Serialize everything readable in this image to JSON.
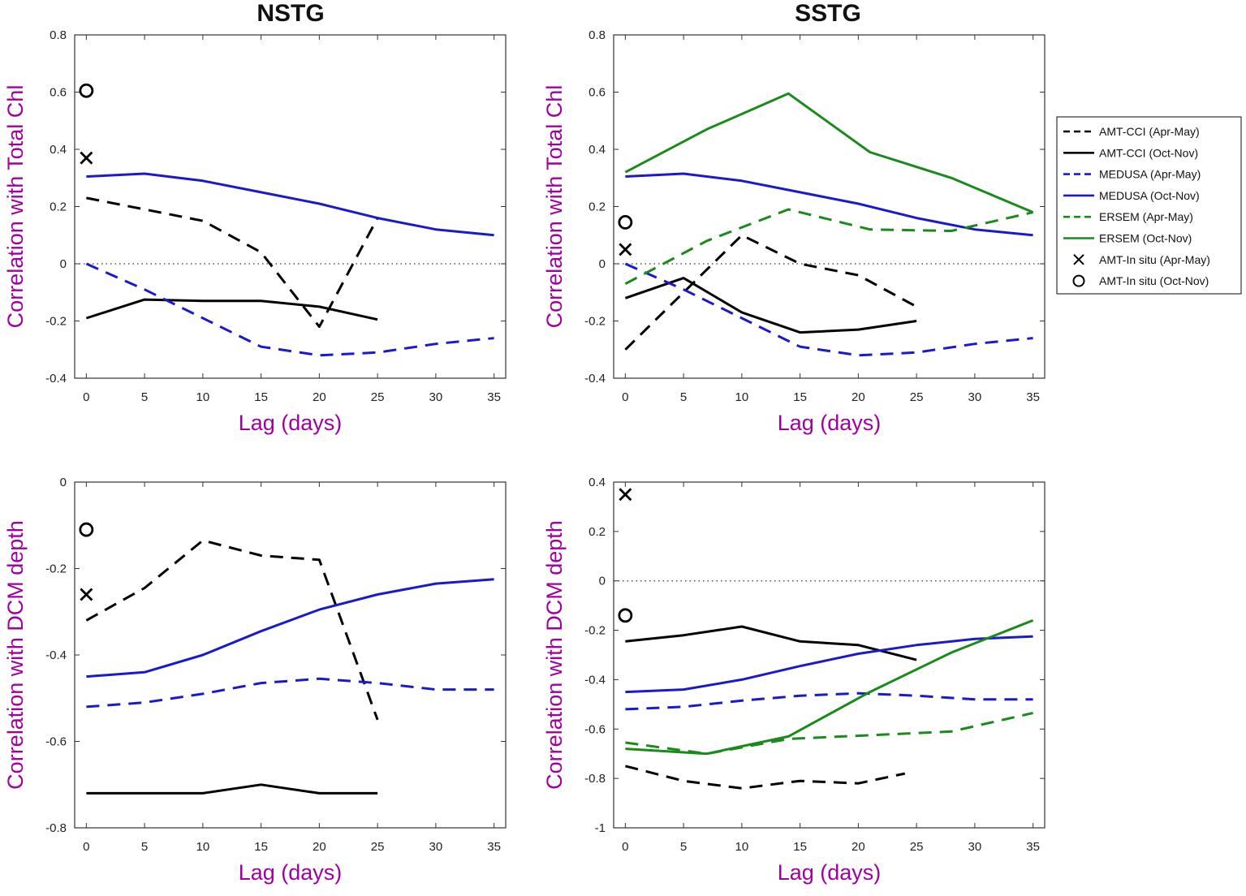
{
  "figure": {
    "column_titles": [
      "NSTG",
      "SSTG"
    ]
  },
  "legend": {
    "entries": [
      {
        "label": "AMT-CCI (Apr-May)",
        "color": "#000000",
        "style": "dashed"
      },
      {
        "label": "AMT-CCI (Oct-Nov)",
        "color": "#000000",
        "style": "solid"
      },
      {
        "label": "MEDUSA (Apr-May)",
        "color": "#1a1acc",
        "style": "dashed"
      },
      {
        "label": "MEDUSA (Oct-Nov)",
        "color": "#1a1acc",
        "style": "solid"
      },
      {
        "label": "ERSEM (Apr-May)",
        "color": "#1a8a1a",
        "style": "dashed"
      },
      {
        "label": "ERSEM (Oct-Nov)",
        "color": "#1a8a1a",
        "style": "solid"
      },
      {
        "label": "AMT-In situ (Apr-May)",
        "color": "#000000",
        "style": "x-marker"
      },
      {
        "label": "AMT-In situ (Oct-Nov)",
        "color": "#000000",
        "style": "o-marker"
      }
    ]
  },
  "chart_data": [
    {
      "type": "line",
      "title": "NSTG",
      "xlabel": "Lag (days)",
      "ylabel": "Correlation with Total Chl",
      "xlim": [
        -1,
        36
      ],
      "ylim": [
        -0.4,
        0.8
      ],
      "xticks": [
        0,
        5,
        10,
        15,
        20,
        25,
        30,
        35
      ],
      "yticks": [
        -0.4,
        -0.2,
        0,
        0.2,
        0.4,
        0.6,
        0.8
      ],
      "zero_line": true,
      "series": [
        {
          "name": "AMT-CCI (Apr-May)",
          "color": "#000000",
          "style": "dashed",
          "x": [
            0,
            5,
            10,
            15,
            20,
            25
          ],
          "y": [
            0.23,
            0.19,
            0.15,
            0.04,
            -0.22,
            0.16
          ]
        },
        {
          "name": "AMT-CCI (Oct-Nov)",
          "color": "#000000",
          "style": "solid",
          "x": [
            0,
            5,
            10,
            15,
            20,
            25
          ],
          "y": [
            -0.19,
            -0.125,
            -0.13,
            -0.13,
            -0.15,
            -0.195
          ]
        },
        {
          "name": "MEDUSA (Apr-May)",
          "color": "#1a1acc",
          "style": "dashed",
          "x": [
            0,
            5,
            10,
            15,
            20,
            25,
            30,
            35
          ],
          "y": [
            0.0,
            -0.09,
            -0.19,
            -0.29,
            -0.32,
            -0.31,
            -0.28,
            -0.26
          ]
        },
        {
          "name": "MEDUSA (Oct-Nov)",
          "color": "#1a1acc",
          "style": "solid",
          "x": [
            0,
            5,
            10,
            15,
            20,
            25,
            30,
            35
          ],
          "y": [
            0.305,
            0.315,
            0.29,
            0.25,
            0.21,
            0.16,
            0.12,
            0.1
          ]
        }
      ],
      "markers": [
        {
          "name": "AMT-In situ (Apr-May)",
          "symbol": "x",
          "x": 0,
          "y": 0.37
        },
        {
          "name": "AMT-In situ (Oct-Nov)",
          "symbol": "o",
          "x": 0,
          "y": 0.605
        }
      ]
    },
    {
      "type": "line",
      "title": "SSTG",
      "xlabel": "Lag (days)",
      "ylabel": "Correlation with Total Chl",
      "xlim": [
        -1,
        36
      ],
      "ylim": [
        -0.4,
        0.8
      ],
      "xticks": [
        0,
        5,
        10,
        15,
        20,
        25,
        30,
        35
      ],
      "yticks": [
        -0.4,
        -0.2,
        0,
        0.2,
        0.4,
        0.6,
        0.8
      ],
      "zero_line": true,
      "series": [
        {
          "name": "AMT-CCI (Apr-May)",
          "color": "#000000",
          "style": "dashed",
          "x": [
            0,
            5,
            10,
            15,
            20,
            25
          ],
          "y": [
            -0.3,
            -0.1,
            0.1,
            0.0,
            -0.04,
            -0.15
          ]
        },
        {
          "name": "AMT-CCI (Oct-Nov)",
          "color": "#000000",
          "style": "solid",
          "x": [
            0,
            5,
            10,
            15,
            20,
            25
          ],
          "y": [
            -0.12,
            -0.05,
            -0.17,
            -0.24,
            -0.23,
            -0.2
          ]
        },
        {
          "name": "MEDUSA (Apr-May)",
          "color": "#1a1acc",
          "style": "dashed",
          "x": [
            0,
            5,
            10,
            15,
            20,
            25,
            30,
            35
          ],
          "y": [
            0.0,
            -0.09,
            -0.19,
            -0.29,
            -0.32,
            -0.31,
            -0.28,
            -0.26
          ]
        },
        {
          "name": "MEDUSA (Oct-Nov)",
          "color": "#1a1acc",
          "style": "solid",
          "x": [
            0,
            5,
            10,
            15,
            20,
            25,
            30,
            35
          ],
          "y": [
            0.305,
            0.315,
            0.29,
            0.25,
            0.21,
            0.16,
            0.12,
            0.1
          ]
        },
        {
          "name": "ERSEM (Apr-May)",
          "color": "#1a8a1a",
          "style": "dashed",
          "x": [
            0,
            7,
            14,
            21,
            28,
            35
          ],
          "y": [
            -0.07,
            0.08,
            0.19,
            0.12,
            0.115,
            0.18
          ]
        },
        {
          "name": "ERSEM (Oct-Nov)",
          "color": "#1a8a1a",
          "style": "solid",
          "x": [
            0,
            7,
            14,
            21,
            28,
            35
          ],
          "y": [
            0.32,
            0.47,
            0.595,
            0.39,
            0.3,
            0.18
          ]
        }
      ],
      "markers": [
        {
          "name": "AMT-In situ (Apr-May)",
          "symbol": "x",
          "x": 0,
          "y": 0.05
        },
        {
          "name": "AMT-In situ (Oct-Nov)",
          "symbol": "o",
          "x": 0,
          "y": 0.145
        }
      ]
    },
    {
      "type": "line",
      "title": "",
      "xlabel": "Lag (days)",
      "ylabel": "Correlation with DCM depth",
      "xlim": [
        -1,
        36
      ],
      "ylim": [
        -0.8,
        0
      ],
      "xticks": [
        0,
        5,
        10,
        15,
        20,
        25,
        30,
        35
      ],
      "yticks": [
        -0.8,
        -0.6,
        -0.4,
        -0.2,
        0
      ],
      "zero_line": false,
      "series": [
        {
          "name": "AMT-CCI (Apr-May)",
          "color": "#000000",
          "style": "dashed",
          "x": [
            0,
            5,
            10,
            15,
            20,
            25
          ],
          "y": [
            -0.32,
            -0.245,
            -0.135,
            -0.17,
            -0.18,
            -0.55
          ]
        },
        {
          "name": "AMT-CCI (Oct-Nov)",
          "color": "#000000",
          "style": "solid",
          "x": [
            0,
            5,
            10,
            15,
            20,
            25
          ],
          "y": [
            -0.72,
            -0.72,
            -0.72,
            -0.7,
            -0.72,
            -0.72
          ]
        },
        {
          "name": "MEDUSA (Apr-May)",
          "color": "#1a1acc",
          "style": "dashed",
          "x": [
            0,
            5,
            10,
            15,
            20,
            25,
            30,
            35
          ],
          "y": [
            -0.52,
            -0.51,
            -0.49,
            -0.465,
            -0.455,
            -0.465,
            -0.48,
            -0.48
          ]
        },
        {
          "name": "MEDUSA (Oct-Nov)",
          "color": "#1a1acc",
          "style": "solid",
          "x": [
            0,
            5,
            10,
            15,
            20,
            25,
            30,
            35
          ],
          "y": [
            -0.45,
            -0.44,
            -0.4,
            -0.345,
            -0.295,
            -0.26,
            -0.235,
            -0.225
          ]
        }
      ],
      "markers": [
        {
          "name": "AMT-In situ (Apr-May)",
          "symbol": "x",
          "x": 0,
          "y": -0.26
        },
        {
          "name": "AMT-In situ (Oct-Nov)",
          "symbol": "o",
          "x": 0,
          "y": -0.11
        }
      ]
    },
    {
      "type": "line",
      "title": "",
      "xlabel": "Lag (days)",
      "ylabel": "Correlation with DCM depth",
      "xlim": [
        -1,
        36
      ],
      "ylim": [
        -1,
        0.4
      ],
      "xticks": [
        0,
        5,
        10,
        15,
        20,
        25,
        30,
        35
      ],
      "yticks": [
        -1,
        -0.8,
        -0.6,
        -0.4,
        -0.2,
        0,
        0.2,
        0.4
      ],
      "zero_line": true,
      "series": [
        {
          "name": "AMT-CCI (Apr-May)",
          "color": "#000000",
          "style": "dashed",
          "x": [
            0,
            5,
            10,
            15,
            20,
            24
          ],
          "y": [
            -0.75,
            -0.81,
            -0.84,
            -0.81,
            -0.82,
            -0.78
          ]
        },
        {
          "name": "AMT-CCI (Oct-Nov)",
          "color": "#000000",
          "style": "solid",
          "x": [
            0,
            5,
            10,
            15,
            20,
            25
          ],
          "y": [
            -0.245,
            -0.22,
            -0.185,
            -0.245,
            -0.26,
            -0.32
          ]
        },
        {
          "name": "MEDUSA (Apr-May)",
          "color": "#1a1acc",
          "style": "dashed",
          "x": [
            0,
            5,
            10,
            15,
            20,
            25,
            30,
            35
          ],
          "y": [
            -0.52,
            -0.51,
            -0.485,
            -0.465,
            -0.455,
            -0.465,
            -0.48,
            -0.48
          ]
        },
        {
          "name": "MEDUSA (Oct-Nov)",
          "color": "#1a1acc",
          "style": "solid",
          "x": [
            0,
            5,
            10,
            15,
            20,
            25,
            30,
            35
          ],
          "y": [
            -0.45,
            -0.44,
            -0.4,
            -0.345,
            -0.295,
            -0.26,
            -0.235,
            -0.225
          ]
        },
        {
          "name": "ERSEM (Apr-May)",
          "color": "#1a8a1a",
          "style": "dashed",
          "x": [
            0,
            7,
            14,
            21,
            28,
            35
          ],
          "y": [
            -0.655,
            -0.7,
            -0.64,
            -0.625,
            -0.61,
            -0.535
          ]
        },
        {
          "name": "ERSEM (Oct-Nov)",
          "color": "#1a8a1a",
          "style": "solid",
          "x": [
            0,
            7,
            14,
            21,
            28,
            35
          ],
          "y": [
            -0.68,
            -0.7,
            -0.63,
            -0.45,
            -0.29,
            -0.16
          ]
        }
      ],
      "markers": [
        {
          "name": "AMT-In situ (Apr-May)",
          "symbol": "x",
          "x": 0,
          "y": 0.35
        },
        {
          "name": "AMT-In situ (Oct-Nov)",
          "symbol": "o",
          "x": 0,
          "y": -0.14
        }
      ]
    }
  ]
}
